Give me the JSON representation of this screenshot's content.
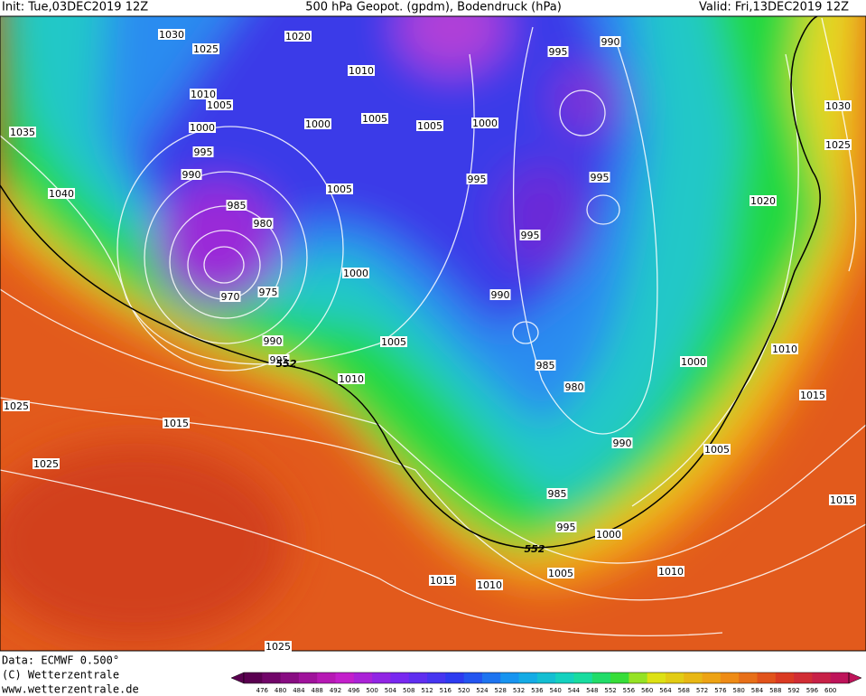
{
  "header": {
    "init": "Init: Tue,03DEC2019 12Z",
    "title": "500 hPa Geopot. (gpdm), Bodendruck (hPa)",
    "valid": "Valid: Fri,13DEC2019 12Z"
  },
  "isobar_labels": [
    1030,
    1025,
    1020,
    1010,
    1010,
    1005,
    1000,
    1035,
    1000,
    1005,
    1005,
    1000,
    995,
    990,
    995,
    990,
    1040,
    985,
    980,
    1005,
    995,
    995,
    995,
    1030,
    1025,
    1020,
    1000,
    975,
    970,
    990,
    990,
    995,
    1005,
    1010,
    985,
    980,
    1010,
    1000,
    1015,
    1025,
    1015,
    990,
    1005,
    1025,
    985,
    995,
    1000,
    1015,
    1010,
    1005,
    1010,
    1015,
    1025
  ],
  "geopotential_labels": [
    552,
    552
  ],
  "footer": {
    "data": "Data: ECMWF  0.500°",
    "copyright": "(C) Wetterzentrale",
    "url": "www.wetterzentrale.de"
  },
  "colorbar": {
    "labels": [
      476,
      480,
      484,
      488,
      492,
      496,
      500,
      504,
      508,
      512,
      516,
      520,
      524,
      528,
      532,
      536,
      540,
      544,
      548,
      552,
      556,
      560,
      564,
      568,
      572,
      576,
      580,
      584,
      588,
      592,
      596,
      600
    ]
  }
}
